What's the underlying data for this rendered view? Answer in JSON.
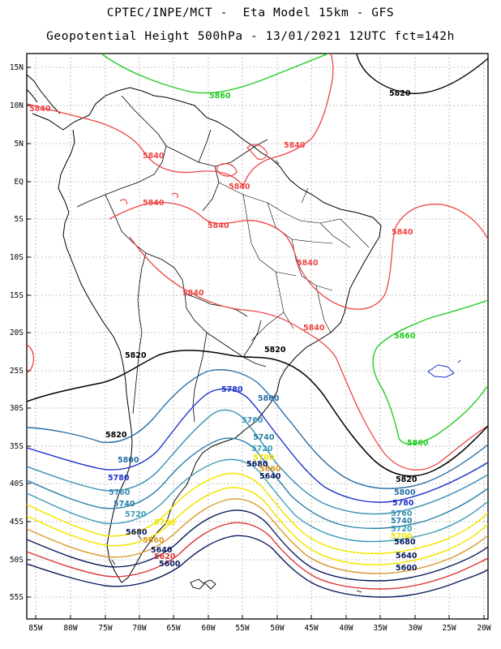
{
  "title": {
    "line1": "CPTEC/INPE/MCT -  Eta Model 15km - GFS",
    "line2": "Geopotential Height 500hPa - 13/01/2021 12UTC fct=142h"
  },
  "colors": {
    "5580": "#0a1a5c",
    "5600": "#0a1a5c",
    "5620": "#dd3333",
    "5640": "#0a1a5c",
    "5660": "#d89a2a",
    "5680": "#f2e600",
    "5700": "#f2e600",
    "5720": "#3a9bb5",
    "5740": "#2a7fa8",
    "5760": "#3a8fb5",
    "5780": "#1e32c8",
    "5800": "#2a6fa5",
    "5820": "#000000",
    "5840": "#ee4444",
    "5860": "#22cc22"
  },
  "axes": {
    "lat_labels": [
      "15N",
      "10N",
      "5N",
      "EQ",
      "5S",
      "10S",
      "15S",
      "20S",
      "25S",
      "30S",
      "35S",
      "40S",
      "45S",
      "50S",
      "55S"
    ],
    "lon_labels": [
      "85W",
      "80W",
      "75W",
      "70W",
      "65W",
      "60W",
      "55W",
      "50W",
      "45W",
      "40W",
      "35W",
      "30W",
      "25W",
      "20W"
    ]
  },
  "contour_labels": [
    {
      "id": "l5820a",
      "text": "5820"
    },
    {
      "id": "l5860a",
      "text": "5860"
    },
    {
      "id": "l5840a",
      "text": "5840"
    },
    {
      "id": "l5840b",
      "text": "5840"
    },
    {
      "id": "l5840c",
      "text": "5840"
    },
    {
      "id": "l5840d",
      "text": "5840"
    },
    {
      "id": "l5840e",
      "text": "5840"
    },
    {
      "id": "l5840f",
      "text": "5840"
    },
    {
      "id": "l5840g",
      "text": "5840"
    },
    {
      "id": "l5840h",
      "text": "5840"
    },
    {
      "id": "l5840i",
      "text": "5840"
    },
    {
      "id": "l5840j",
      "text": "5840"
    },
    {
      "id": "l5860b",
      "text": "5860"
    },
    {
      "id": "l5860c",
      "text": "5860"
    },
    {
      "id": "l5820b",
      "text": "5820"
    },
    {
      "id": "l5820c",
      "text": "5820"
    },
    {
      "id": "l5820d",
      "text": "5820"
    },
    {
      "id": "l5820e",
      "text": "5820"
    },
    {
      "id": "l5780a",
      "text": "5780"
    },
    {
      "id": "l5800a",
      "text": "5800"
    },
    {
      "id": "l5760a",
      "text": "5760"
    },
    {
      "id": "l5740a",
      "text": "5740"
    },
    {
      "id": "l5720a",
      "text": "5720"
    },
    {
      "id": "l5700a",
      "text": "5700"
    },
    {
      "id": "l5680a",
      "text": "5680"
    },
    {
      "id": "l5660a",
      "text": "5660"
    },
    {
      "id": "l5640a",
      "text": "5640"
    },
    {
      "id": "l5800b",
      "text": "5800"
    },
    {
      "id": "l5780b",
      "text": "5780"
    },
    {
      "id": "l5760b",
      "text": "5760"
    },
    {
      "id": "l5740b",
      "text": "5740"
    },
    {
      "id": "l5720b",
      "text": "5720"
    },
    {
      "id": "l5700b",
      "text": "5700"
    },
    {
      "id": "l5680b",
      "text": "5680"
    },
    {
      "id": "l5660b",
      "text": "5660"
    },
    {
      "id": "l5640b",
      "text": "5640"
    },
    {
      "id": "l5620b",
      "text": "5620"
    },
    {
      "id": "l5600b",
      "text": "5600"
    },
    {
      "id": "l5800c",
      "text": "5800"
    },
    {
      "id": "l5780c",
      "text": "5780"
    },
    {
      "id": "l5760c",
      "text": "5760"
    },
    {
      "id": "l5740c",
      "text": "5740"
    },
    {
      "id": "l5720c",
      "text": "5720"
    },
    {
      "id": "l5700c",
      "text": "5700"
    },
    {
      "id": "l5680c",
      "text": "5680"
    },
    {
      "id": "l5640c",
      "text": "5640"
    },
    {
      "id": "l5600c",
      "text": "5600"
    }
  ]
}
